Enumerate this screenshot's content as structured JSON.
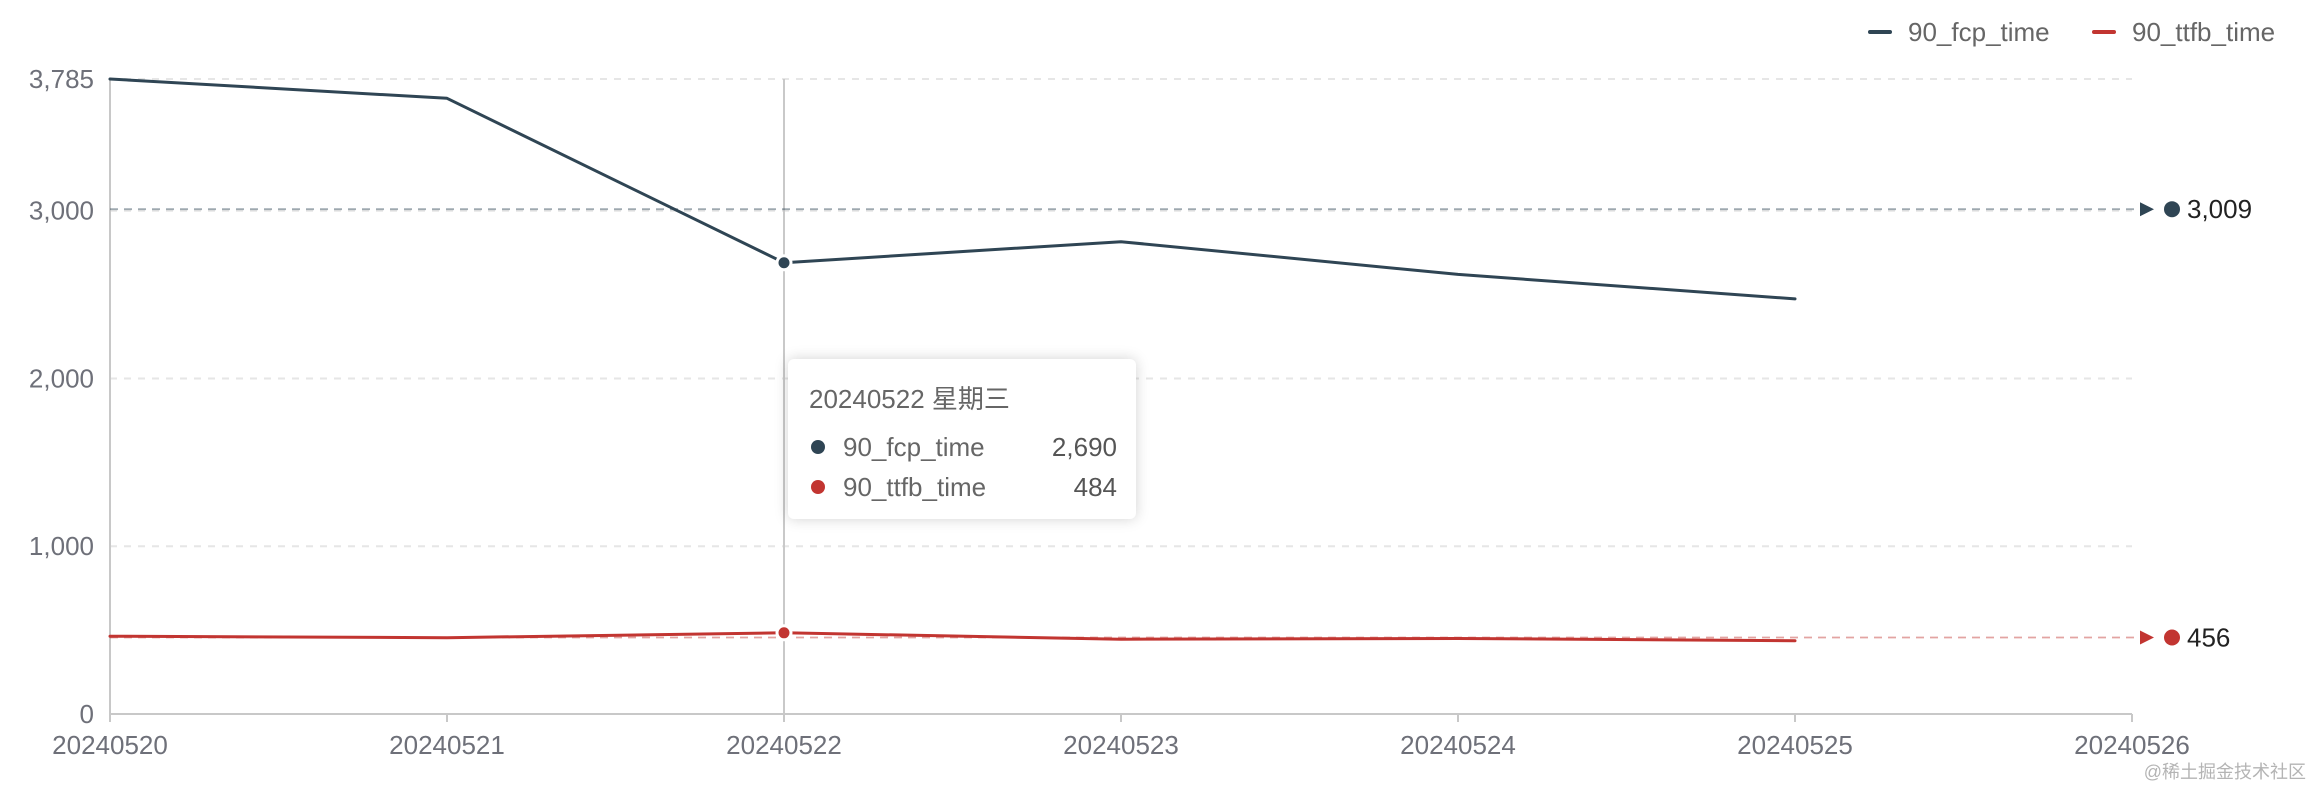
{
  "chart_data": {
    "type": "line",
    "categories": [
      "20240520",
      "20240521",
      "20240522",
      "20240523",
      "20240524",
      "20240525",
      "20240526"
    ],
    "series": [
      {
        "name": "90_fcp_time",
        "color": "#2f4554",
        "values": [
          3785,
          3670,
          2690,
          2815,
          2620,
          2474,
          null
        ],
        "mark_line": {
          "value": 3009,
          "label": "3,009"
        }
      },
      {
        "name": "90_ttfb_time",
        "color": "#c23531",
        "values": [
          464,
          455,
          484,
          446,
          450,
          437,
          null
        ],
        "mark_line": {
          "value": 456,
          "label": "456"
        }
      }
    ],
    "y_ticks": [
      {
        "value": 0,
        "label": "0"
      },
      {
        "value": 1000,
        "label": "1,000"
      },
      {
        "value": 2000,
        "label": "2,000"
      },
      {
        "value": 3000,
        "label": "3,000"
      },
      {
        "value": 3785,
        "label": "3,785"
      }
    ],
    "ylim": [
      0,
      3785
    ],
    "grid": true,
    "legend": "top-right",
    "hover_index": 2,
    "tooltip": {
      "title": "20240522 星期三",
      "rows": [
        {
          "name": "90_fcp_time",
          "value": "2,690",
          "color": "#2f4554"
        },
        {
          "name": "90_ttfb_time",
          "value": "484",
          "color": "#c23531"
        }
      ]
    }
  },
  "watermark": "@稀土掘金技术社区"
}
